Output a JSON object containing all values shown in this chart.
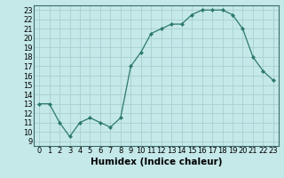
{
  "x": [
    0,
    1,
    2,
    3,
    4,
    5,
    6,
    7,
    8,
    9,
    10,
    11,
    12,
    13,
    14,
    15,
    16,
    17,
    18,
    19,
    20,
    21,
    22,
    23
  ],
  "y": [
    13,
    13,
    11,
    9.5,
    11,
    11.5,
    11,
    10.5,
    11.5,
    17,
    18.5,
    20.5,
    21,
    21.5,
    21.5,
    22.5,
    23,
    23,
    23,
    22.5,
    21,
    18,
    16.5,
    15.5
  ],
  "line_color": "#2d7a6a",
  "marker": "D",
  "marker_size": 2.0,
  "background_color": "#c5e8e8",
  "grid_color": "#a8d0d0",
  "xlabel": "Humidex (Indice chaleur)",
  "xlim": [
    -0.5,
    23.5
  ],
  "ylim": [
    8.5,
    23.5
  ],
  "yticks": [
    9,
    10,
    11,
    12,
    13,
    14,
    15,
    16,
    17,
    18,
    19,
    20,
    21,
    22,
    23
  ],
  "xticks": [
    0,
    1,
    2,
    3,
    4,
    5,
    6,
    7,
    8,
    9,
    10,
    11,
    12,
    13,
    14,
    15,
    16,
    17,
    18,
    19,
    20,
    21,
    22,
    23
  ],
  "tick_label_fontsize": 6.0,
  "xlabel_fontsize": 7.5,
  "linewidth": 0.9,
  "spine_color": "#3a6a6a"
}
